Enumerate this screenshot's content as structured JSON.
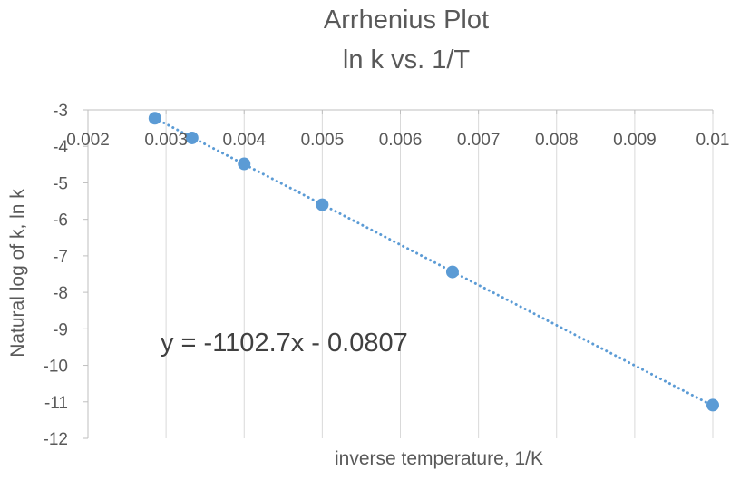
{
  "chart_data": {
    "type": "scatter",
    "title_lines": [
      "Arrhenius Plot",
      "ln k vs. 1/T"
    ],
    "xlabel": "inverse temperature, 1/K",
    "ylabel": "Natural log of k, ln k",
    "xlim": [
      0.002,
      0.01
    ],
    "ylim": [
      -12,
      -3
    ],
    "x_ticks": [
      0.002,
      0.003,
      0.004,
      0.005,
      0.006,
      0.007,
      0.008,
      0.009,
      0.01
    ],
    "x_tick_labels": [
      "0.002",
      "0.003",
      "0.004",
      "0.005",
      "0.006",
      "0.007",
      "0.008",
      "0.009",
      "0.01"
    ],
    "y_ticks": [
      -3,
      -4,
      -5,
      -6,
      -7,
      -8,
      -9,
      -10,
      -11,
      -12
    ],
    "y_tick_labels": [
      "-3",
      "-4",
      "-5",
      "-6",
      "-7",
      "-8",
      "-9",
      "-10",
      "-11",
      "-12"
    ],
    "x_axis_crosses_at_top": true,
    "grid": {
      "vertical": true,
      "horizontal": false
    },
    "series": [
      {
        "x": [
          0.002857,
          0.003333,
          0.004,
          0.005,
          0.006667,
          0.01
        ],
        "y": [
          -3.23,
          -3.77,
          -4.48,
          -5.6,
          -7.44,
          -11.09
        ],
        "marker_color": "#5B9BD5"
      }
    ],
    "trendline": {
      "style": "dotted",
      "color": "#5B9BD5",
      "slope": -1102.7,
      "intercept": -0.0807,
      "x_range": [
        0.002857,
        0.01
      ],
      "equation_label": "y = -1102.7x - 0.0807"
    },
    "colors": {
      "grid": "#D9D9D9",
      "axis": "#BFBFBF",
      "text": "#595959"
    }
  }
}
